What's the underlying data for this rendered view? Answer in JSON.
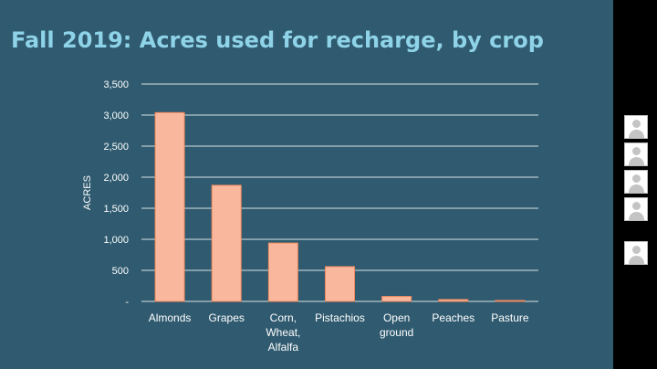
{
  "slide": {
    "title": "Fall 2019: Acres used for recharge, by crop",
    "background": "#2f5a6f",
    "title_color": "#8fd3e8"
  },
  "chart_data": {
    "type": "bar",
    "title": "Fall 2019: Acres used for recharge, by crop",
    "xlabel": "",
    "ylabel": "ACRES",
    "categories": [
      [
        "Almonds"
      ],
      [
        "Grapes"
      ],
      [
        "Corn,",
        "Wheat,",
        "Alfalfa"
      ],
      [
        "Pistachios"
      ],
      [
        "Open",
        "ground"
      ],
      [
        "Peaches"
      ],
      [
        "Pasture"
      ]
    ],
    "values": [
      3040,
      1870,
      940,
      560,
      80,
      30,
      15
    ],
    "ylim": [
      0,
      3500
    ],
    "yticks": [
      0,
      500,
      1000,
      1500,
      2000,
      2500,
      3000,
      3500
    ],
    "ytick_labels": [
      "-",
      "500",
      "1,000",
      "1,500",
      "2,000",
      "2,500",
      "3,000",
      "3,500"
    ],
    "grid": true,
    "bar_fill": "#f9b89e",
    "bar_stroke": "#f08a5d",
    "grid_color": "#d8e2e6"
  },
  "participants": {
    "icon": "person-silhouette-icon",
    "tiles": 5
  }
}
